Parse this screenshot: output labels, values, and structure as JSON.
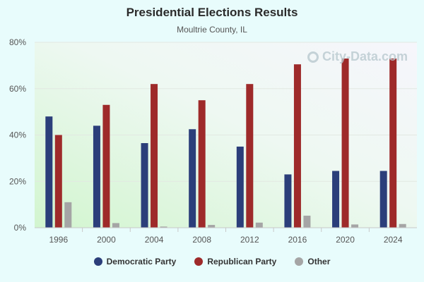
{
  "chart_data": {
    "type": "bar",
    "title": "Presidential Elections Results",
    "subtitle": "Moultrie County, IL",
    "categories": [
      "1996",
      "2000",
      "2004",
      "2008",
      "2012",
      "2016",
      "2020",
      "2024"
    ],
    "series": [
      {
        "name": "Democratic Party",
        "color": "#2b3e7a",
        "values": [
          48,
          44,
          36.5,
          42.5,
          35,
          23,
          24.5,
          24.5
        ]
      },
      {
        "name": "Republican Party",
        "color": "#9e2a2a",
        "values": [
          40,
          53,
          62,
          55,
          62,
          70.5,
          73,
          73
        ]
      },
      {
        "name": "Other",
        "color": "#a5a5a5",
        "values": [
          11,
          2,
          0.5,
          1.2,
          2.2,
          5.2,
          1.4,
          1.6
        ]
      }
    ],
    "yticks": [
      "0%",
      "20%",
      "40%",
      "60%",
      "80%"
    ],
    "ylim": [
      0,
      80
    ],
    "grid": true,
    "legend": "bottom"
  },
  "watermark": "City-Data.com"
}
